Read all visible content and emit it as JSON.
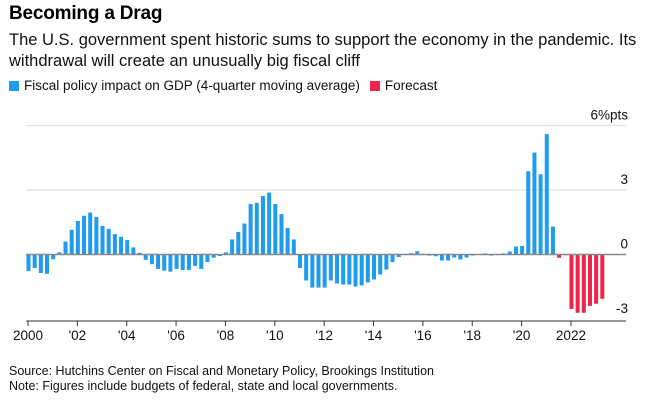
{
  "header": {
    "title": "Becoming a Drag",
    "subtitle": "The U.S. government spent historic sums to support the economy in the pandemic. Its withdrawal will create an unusually big fiscal cliff"
  },
  "legend": [
    {
      "label": "Fiscal policy impact on GDP (4-quarter moving average)",
      "color": "#1f9bf0"
    },
    {
      "label": "Forecast",
      "color": "#ee2448"
    }
  ],
  "footer": {
    "source": "Source: Hutchins Center on Fiscal and Monetary Policy, Brookings Institution",
    "note": "Note: Figures include budgets of federal, state and local governments."
  },
  "chart_data": {
    "type": "bar",
    "title": "Becoming a Drag",
    "xlabel": "",
    "ylabel": "",
    "unit_label": "6%pts",
    "ylim": [
      -3,
      6
    ],
    "yticks": [
      {
        "value": 6,
        "label": "6%pts"
      },
      {
        "value": 3,
        "label": "3"
      },
      {
        "value": 0,
        "label": "0"
      },
      {
        "value": -3,
        "label": "-3"
      }
    ],
    "grid": true,
    "legend_position": "top-left",
    "x_start": "2000Q1",
    "frequency": "quarterly",
    "xticks": [
      {
        "index": 0,
        "label": "2000"
      },
      {
        "index": 8,
        "label": "'02"
      },
      {
        "index": 16,
        "label": "'04"
      },
      {
        "index": 24,
        "label": "'06"
      },
      {
        "index": 32,
        "label": "'08"
      },
      {
        "index": 40,
        "label": "'10"
      },
      {
        "index": 48,
        "label": "'12"
      },
      {
        "index": 56,
        "label": "'14"
      },
      {
        "index": 64,
        "label": "'16"
      },
      {
        "index": 72,
        "label": "'18"
      },
      {
        "index": 80,
        "label": "'20"
      },
      {
        "index": 88,
        "label": "2022"
      }
    ],
    "series": [
      {
        "name": "Fiscal policy impact on GDP (4-quarter moving average)",
        "color": "#1f9bf0",
        "start_index": 0,
        "values": [
          -0.77,
          -0.63,
          -0.86,
          -0.9,
          -0.22,
          0.1,
          0.6,
          1.15,
          1.56,
          1.8,
          1.95,
          1.75,
          1.33,
          1.19,
          0.95,
          0.82,
          0.67,
          0.33,
          0.08,
          -0.25,
          -0.45,
          -0.67,
          -0.75,
          -0.8,
          -0.67,
          -0.72,
          -0.72,
          -0.53,
          -0.67,
          -0.35,
          -0.15,
          -0.07,
          0.1,
          0.7,
          1.05,
          1.44,
          2.35,
          2.4,
          2.72,
          2.88,
          2.35,
          1.88,
          1.23,
          0.7,
          -0.63,
          -1.21,
          -1.54,
          -1.54,
          -1.54,
          -1.21,
          -1.35,
          -1.4,
          -1.4,
          -1.49,
          -1.44,
          -1.3,
          -1.16,
          -0.93,
          -0.7,
          -0.35,
          -0.12,
          0.02,
          0.06,
          0.15,
          0.02,
          -0.05,
          -0.08,
          -0.28,
          -0.28,
          -0.14,
          -0.23,
          -0.14,
          -0.05,
          0.02,
          0.05,
          -0.05,
          0.02,
          0.05,
          0.14,
          0.37,
          0.4,
          3.87,
          4.74,
          3.73,
          5.6,
          1.3
        ]
      },
      {
        "name": "Forecast",
        "color": "#ee2448",
        "start_index": 86,
        "values": [
          -0.15,
          -0.03,
          -2.53,
          -2.71,
          -2.71,
          -2.39,
          -2.29,
          -2.06
        ]
      }
    ]
  }
}
